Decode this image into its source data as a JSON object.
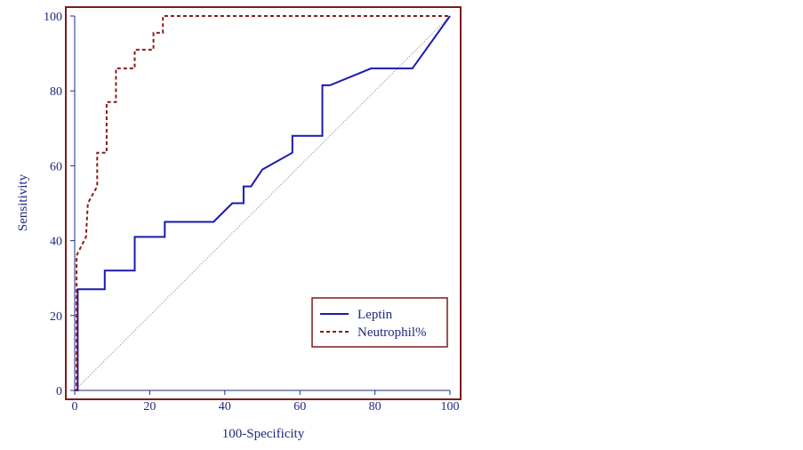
{
  "chart_data": {
    "type": "line",
    "xlabel": "100-Specificity",
    "ylabel": "Sensitivity",
    "xlim": [
      0,
      100
    ],
    "ylim": [
      0,
      100
    ],
    "xticks": [
      "0",
      "20",
      "40",
      "60",
      "80",
      "100"
    ],
    "yticks": [
      "0",
      "20",
      "40",
      "60",
      "80",
      "100"
    ],
    "legend": {
      "position": "bottom-right",
      "entries": [
        "Leptin",
        "Neutrophil%"
      ]
    },
    "colors": {
      "frame": "#7b1d1d",
      "axis_text": "#1f2a80",
      "leptin": "#1a1ab0",
      "neutrophil": "#8b1a1a",
      "reference": "#b0a0a0"
    },
    "reference_line": {
      "x": [
        0,
        100
      ],
      "y": [
        0,
        100
      ]
    },
    "series": [
      {
        "name": "Leptin",
        "style": "solid",
        "x": [
          0,
          0.8,
          0.8,
          8,
          8,
          16,
          16,
          24,
          24,
          37,
          42,
          42,
          45,
          45,
          47,
          50,
          58,
          58,
          66,
          66,
          68,
          79,
          90,
          100
        ],
        "y": [
          0,
          0,
          27,
          27,
          32,
          32,
          41,
          41,
          45,
          45,
          50,
          50,
          50,
          54.5,
          54.5,
          59,
          63.5,
          68,
          68,
          81.5,
          81.5,
          86,
          86,
          100
        ]
      },
      {
        "name": "Neutrophil%",
        "style": "dashed",
        "x": [
          0,
          0.5,
          0.5,
          3,
          3.5,
          6,
          6,
          8.5,
          8.5,
          11,
          11,
          16,
          16,
          21,
          21,
          23.5,
          23.5,
          100
        ],
        "y": [
          0,
          0,
          36,
          41,
          50,
          54.5,
          63.5,
          63.5,
          77,
          77,
          86,
          86,
          91,
          91,
          95.5,
          95.5,
          100,
          100
        ]
      }
    ]
  }
}
